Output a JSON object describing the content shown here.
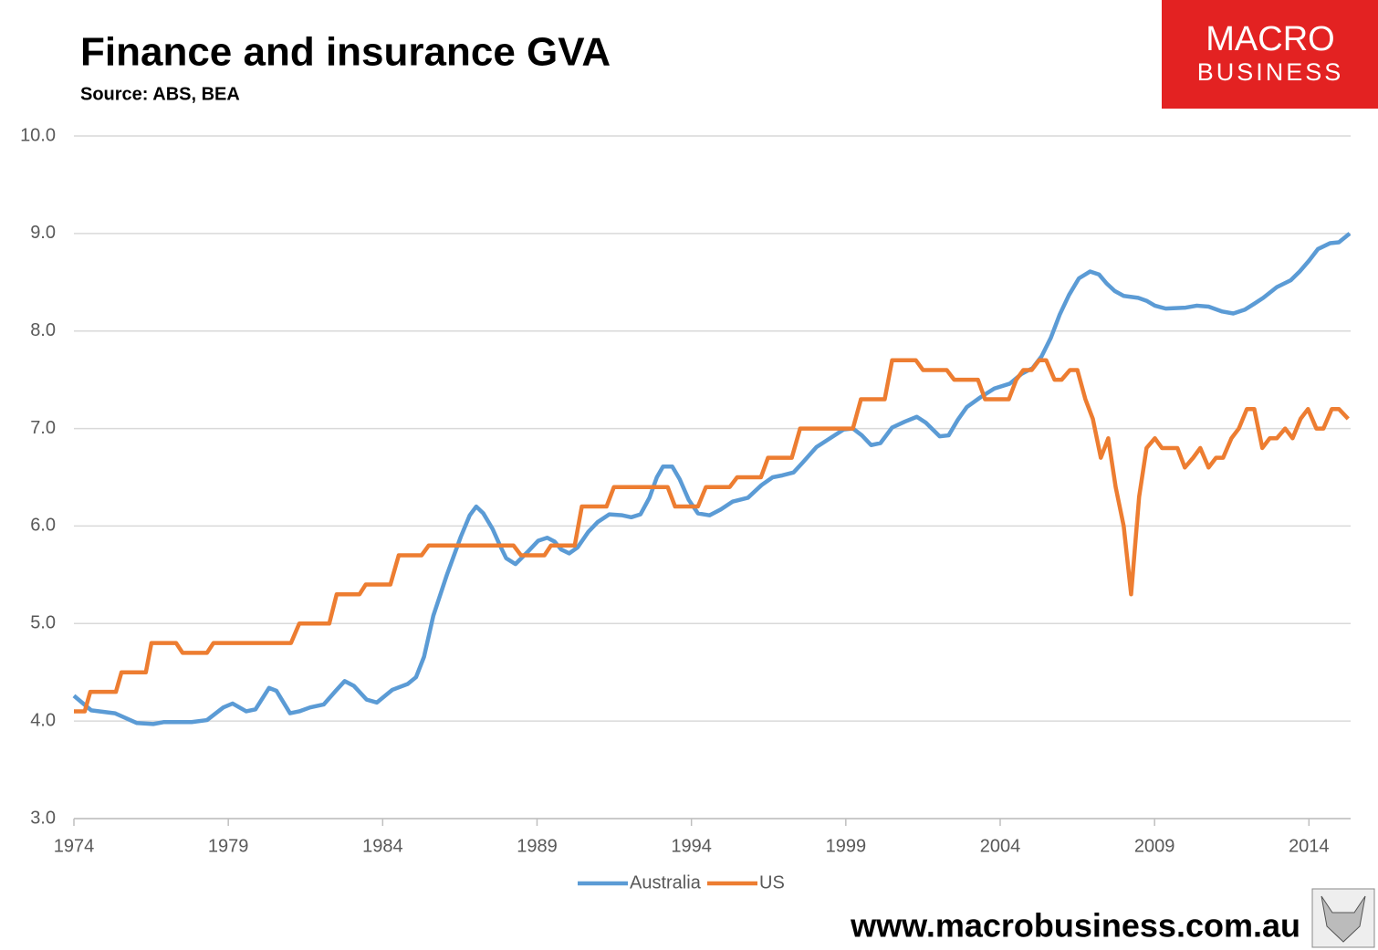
{
  "chart_data": {
    "type": "line",
    "title": "Finance and insurance GVA",
    "subtitle": "Source: ABS, BEA",
    "logo_text": "MACRO",
    "logo_subtext": "BUSINESS",
    "footer": "www.macrobusiness.com.au",
    "xlim": [
      1974,
      2015.35
    ],
    "xticks": [
      1974,
      1979,
      1984,
      1989,
      1994,
      1999,
      2004,
      2009,
      2014
    ],
    "ylim": [
      3,
      10
    ],
    "yticks": [
      {
        "value": 3,
        "label": "3.0"
      },
      {
        "value": 4,
        "label": "4.0"
      },
      {
        "value": 5,
        "label": "5.0"
      },
      {
        "value": 6,
        "label": "6.0"
      },
      {
        "value": 7,
        "label": "7.0"
      },
      {
        "value": 8,
        "label": "8.0"
      },
      {
        "value": 9,
        "label": "9.0"
      },
      {
        "value": 10,
        "label": "10.0"
      }
    ],
    "grid": true,
    "legend": "bottom",
    "series": [
      {
        "name": "Australia",
        "color": "#5b9bd5",
        "x": [
          1974.0,
          1974.56,
          1975.33,
          1976.04,
          1976.57,
          1976.92,
          1977.81,
          1978.31,
          1978.84,
          1979.14,
          1979.58,
          1979.88,
          1980.32,
          1980.56,
          1981.0,
          1981.3,
          1981.65,
          1982.09,
          1982.48,
          1982.77,
          1983.07,
          1983.48,
          1983.81,
          1984.31,
          1984.81,
          1985.08,
          1985.34,
          1985.64,
          1986.08,
          1986.53,
          1986.82,
          1987.03,
          1987.26,
          1987.56,
          1987.8,
          1988.0,
          1988.3,
          1988.68,
          1989.04,
          1989.33,
          1989.57,
          1989.78,
          1990.04,
          1990.31,
          1990.66,
          1990.96,
          1991.34,
          1991.76,
          1992.05,
          1992.35,
          1992.64,
          1992.88,
          1993.08,
          1993.38,
          1993.62,
          1993.91,
          1994.21,
          1994.59,
          1994.95,
          1995.33,
          1995.83,
          1996.27,
          1996.63,
          1996.95,
          1997.31,
          1997.6,
          1998.05,
          1998.49,
          1998.93,
          1999.23,
          1999.52,
          1999.82,
          2000.12,
          2000.5,
          2000.91,
          2001.3,
          2001.59,
          2002.04,
          2002.33,
          2002.63,
          2002.92,
          2003.36,
          2003.81,
          2004.31,
          2004.69,
          2005.05,
          2005.34,
          2005.64,
          2005.93,
          2006.23,
          2006.55,
          2006.91,
          2007.2,
          2007.44,
          2007.71,
          2008.0,
          2008.47,
          2008.74,
          2009.01,
          2009.36,
          2010.01,
          2010.37,
          2010.75,
          2011.19,
          2011.55,
          2011.93,
          2012.23,
          2012.52,
          2012.96,
          2013.41,
          2013.7,
          2014.0,
          2014.29,
          2014.68,
          2014.97,
          2015.32
        ],
        "values": [
          4.26,
          4.11,
          4.08,
          3.98,
          3.97,
          3.99,
          3.99,
          4.01,
          4.14,
          4.18,
          4.1,
          4.12,
          4.34,
          4.31,
          4.08,
          4.1,
          4.14,
          4.17,
          4.31,
          4.41,
          4.36,
          4.22,
          4.19,
          4.32,
          4.38,
          4.45,
          4.66,
          5.08,
          5.5,
          5.89,
          6.11,
          6.2,
          6.13,
          5.97,
          5.8,
          5.67,
          5.61,
          5.73,
          5.85,
          5.88,
          5.84,
          5.76,
          5.72,
          5.78,
          5.94,
          6.04,
          6.12,
          6.11,
          6.09,
          6.12,
          6.29,
          6.5,
          6.61,
          6.61,
          6.48,
          6.27,
          6.13,
          6.11,
          6.17,
          6.25,
          6.29,
          6.42,
          6.5,
          6.52,
          6.55,
          6.65,
          6.81,
          6.9,
          6.99,
          7.0,
          6.93,
          6.83,
          6.85,
          7.01,
          7.07,
          7.12,
          7.06,
          6.92,
          6.93,
          7.09,
          7.22,
          7.32,
          7.41,
          7.46,
          7.56,
          7.62,
          7.74,
          7.93,
          8.17,
          8.37,
          8.54,
          8.61,
          8.58,
          8.49,
          8.41,
          8.36,
          8.34,
          8.31,
          8.26,
          8.23,
          8.24,
          8.26,
          8.25,
          8.2,
          8.18,
          8.22,
          8.28,
          8.34,
          8.45,
          8.52,
          8.61,
          8.72,
          8.84,
          8.9,
          8.91,
          9.0
        ]
      },
      {
        "name": "US",
        "color": "#ed7d31",
        "x": [
          1974.0,
          1974.35,
          1974.53,
          1975.36,
          1975.54,
          1976.33,
          1976.51,
          1977.31,
          1977.52,
          1978.31,
          1978.52,
          1981.03,
          1981.3,
          1982.27,
          1982.51,
          1983.25,
          1983.45,
          1984.25,
          1984.52,
          1985.26,
          1985.49,
          1988.24,
          1988.48,
          1989.24,
          1989.45,
          1990.22,
          1990.45,
          1991.25,
          1991.49,
          1993.23,
          1993.47,
          1994.21,
          1994.47,
          1995.24,
          1995.48,
          1996.25,
          1996.48,
          1997.25,
          1997.52,
          1999.23,
          1999.49,
          2000.26,
          2000.5,
          2001.27,
          2001.5,
          2002.27,
          2002.51,
          2003.28,
          2003.51,
          2004.28,
          2004.52,
          2004.75,
          2005.02,
          2005.26,
          2005.49,
          2005.76,
          2005.99,
          2006.26,
          2006.5,
          2006.76,
          2007.0,
          2007.26,
          2007.5,
          2007.74,
          2008.0,
          2008.24,
          2008.5,
          2008.74,
          2009.01,
          2009.24,
          2009.74,
          2009.98,
          2010.25,
          2010.48,
          2010.75,
          2010.99,
          2011.22,
          2011.49,
          2011.73,
          2011.99,
          2012.23,
          2012.49,
          2012.73,
          2012.96,
          2013.23,
          2013.47,
          2013.73,
          2013.97,
          2014.24,
          2014.47,
          2014.74,
          2014.97,
          2015.27
        ],
        "values": [
          4.1,
          4.1,
          4.3,
          4.3,
          4.5,
          4.5,
          4.8,
          4.8,
          4.7,
          4.7,
          4.8,
          4.8,
          5.0,
          5.0,
          5.3,
          5.3,
          5.4,
          5.4,
          5.7,
          5.7,
          5.8,
          5.8,
          5.7,
          5.7,
          5.8,
          5.8,
          6.2,
          6.2,
          6.4,
          6.4,
          6.2,
          6.2,
          6.4,
          6.4,
          6.5,
          6.5,
          6.7,
          6.7,
          7.0,
          7.0,
          7.3,
          7.3,
          7.7,
          7.7,
          7.6,
          7.6,
          7.5,
          7.5,
          7.3,
          7.3,
          7.5,
          7.6,
          7.6,
          7.7,
          7.7,
          7.5,
          7.5,
          7.6,
          7.6,
          7.3,
          7.1,
          6.7,
          6.9,
          6.4,
          6.0,
          5.3,
          6.3,
          6.8,
          6.9,
          6.8,
          6.8,
          6.6,
          6.7,
          6.8,
          6.6,
          6.7,
          6.7,
          6.9,
          7.0,
          7.2,
          7.2,
          6.8,
          6.9,
          6.9,
          7.0,
          6.9,
          7.1,
          7.2,
          7.0,
          7.0,
          7.2,
          7.2,
          7.1
        ]
      }
    ]
  }
}
